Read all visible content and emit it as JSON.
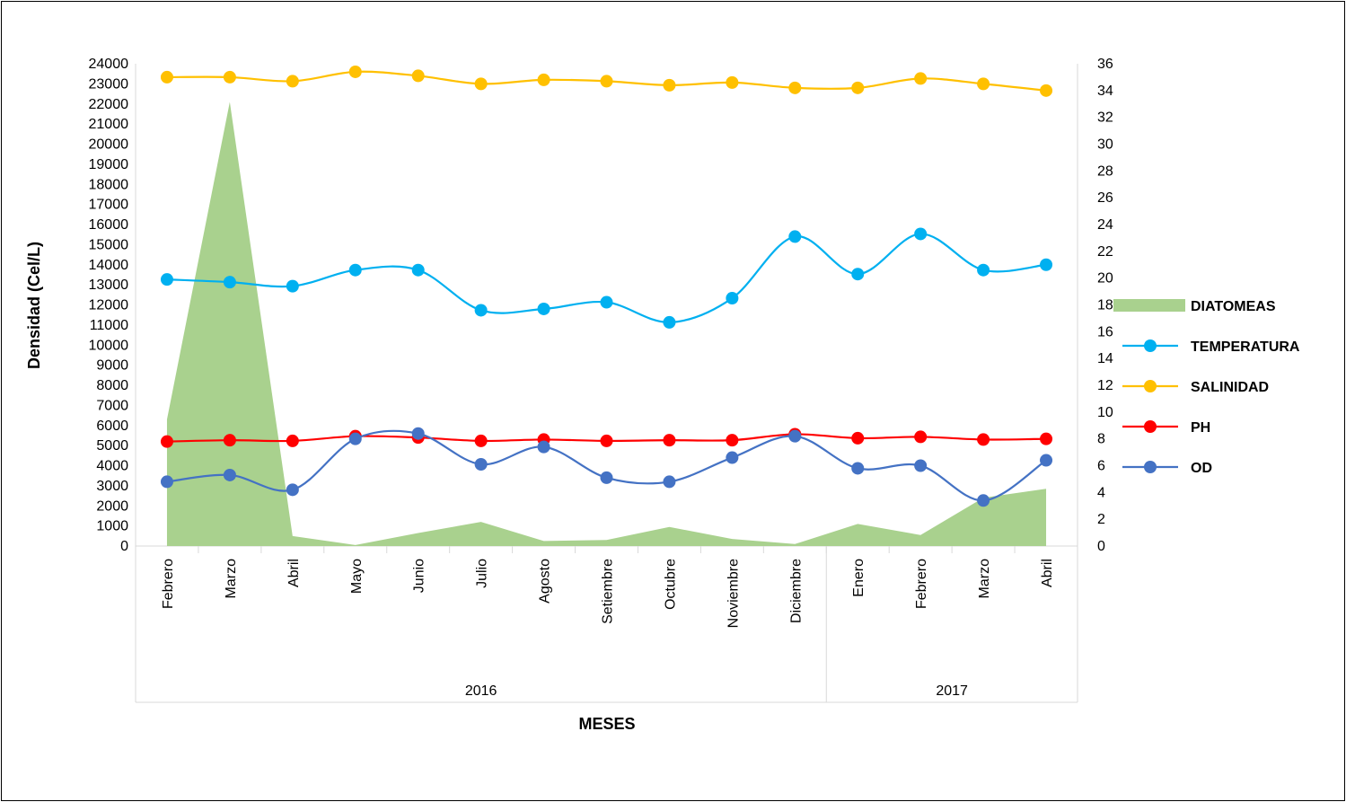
{
  "chart_data": {
    "type": "line",
    "categories": [
      "Febrero",
      "Marzo",
      "Abril",
      "Mayo",
      "Junio",
      "Julio",
      "Agosto",
      "Setiembre",
      "Octubre",
      "Noviembre",
      "Diciembre",
      "Enero",
      "Febrero",
      "Marzo",
      "Abril"
    ],
    "groups": [
      {
        "label": "2016",
        "count": 11
      },
      {
        "label": "2017",
        "count": 4
      }
    ],
    "xlabel": "MESES",
    "ylabel": "Densidad   (Cel/L)",
    "ylim": [
      0,
      24000
    ],
    "ytick_step": 1000,
    "y2lim": [
      0,
      36
    ],
    "y2tick_step": 2,
    "legend_position": "right",
    "series": [
      {
        "name": "DIATOMEAS",
        "type": "area",
        "axis": "left",
        "color": "#a9d18e",
        "values": [
          6300,
          22100,
          500,
          50,
          650,
          1200,
          250,
          300,
          950,
          350,
          100,
          1100,
          550,
          2400,
          2850
        ]
      },
      {
        "name": "TEMPERATURA",
        "type": "line",
        "axis": "right",
        "color": "#00b0f0",
        "values": [
          19.9,
          19.7,
          19.4,
          20.6,
          20.6,
          17.6,
          17.7,
          18.2,
          16.7,
          18.5,
          23.1,
          20.3,
          23.3,
          20.6,
          21.0
        ]
      },
      {
        "name": "SALINIDAD",
        "type": "line",
        "axis": "right",
        "color": "#ffc000",
        "values": [
          35.0,
          35.0,
          34.7,
          35.4,
          35.1,
          34.5,
          34.8,
          34.7,
          34.4,
          34.6,
          34.2,
          34.2,
          34.9,
          34.5,
          34.0
        ]
      },
      {
        "name": "PH",
        "type": "line",
        "axis": "right",
        "color": "#ff0000",
        "values": [
          7.8,
          7.9,
          7.85,
          8.2,
          8.1,
          7.85,
          7.95,
          7.85,
          7.9,
          7.9,
          8.35,
          8.05,
          8.15,
          7.95,
          8.0
        ]
      },
      {
        "name": "OD",
        "type": "line",
        "axis": "right",
        "color": "#4472c4",
        "values": [
          4.8,
          5.3,
          4.2,
          8.0,
          8.4,
          6.1,
          7.4,
          5.1,
          4.8,
          6.6,
          8.2,
          5.8,
          6.0,
          3.4,
          6.4
        ]
      }
    ]
  }
}
